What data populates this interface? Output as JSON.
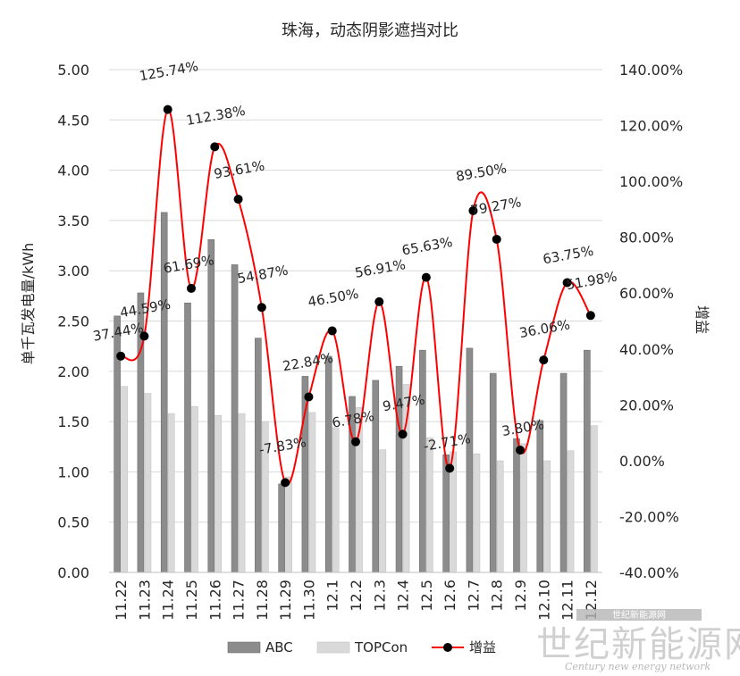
{
  "chart_data": {
    "type": "bar",
    "title": "珠海，动态阴影遮挡对比",
    "ylabel": "单千瓦发电量/kWh",
    "y2label": "增益",
    "ylim": [
      0,
      5
    ],
    "y2lim": [
      -40,
      140
    ],
    "y_ticks": [
      "0.00",
      "0.50",
      "1.00",
      "1.50",
      "2.00",
      "2.50",
      "3.00",
      "3.50",
      "4.00",
      "4.50",
      "5.00"
    ],
    "y2_ticks": [
      "-40.00%",
      "-20.00%",
      "0.00%",
      "20.00%",
      "40.00%",
      "60.00%",
      "80.00%",
      "100.00%",
      "120.00%",
      "140.00%"
    ],
    "categories": [
      "11.22",
      "11.23",
      "11.24",
      "11.25",
      "11.26",
      "11.27",
      "11.28",
      "11.29",
      "11.30",
      "12.1",
      "12.2",
      "12.3",
      "12.4",
      "12.5",
      "12.6",
      "12.7",
      "12.8",
      "12.9",
      "12.10",
      "12.11",
      "12.12"
    ],
    "series": [
      {
        "name": "ABC",
        "type": "bar",
        "color": "#8c8c8c",
        "values": [
          2.55,
          2.78,
          3.58,
          2.68,
          3.31,
          3.06,
          2.33,
          0.88,
          1.95,
          2.15,
          1.75,
          1.91,
          2.05,
          2.21,
          1.17,
          2.23,
          1.98,
          1.33,
          1.51,
          1.98,
          2.21
        ]
      },
      {
        "name": "TOPCon",
        "type": "bar",
        "color": "#d9d9d9",
        "values": [
          1.85,
          1.78,
          1.58,
          1.65,
          1.56,
          1.58,
          1.5,
          0.95,
          1.59,
          1.44,
          1.64,
          1.22,
          1.87,
          1.34,
          1.2,
          1.18,
          1.11,
          1.28,
          1.11,
          1.21,
          1.46
        ]
      },
      {
        "name": "增益",
        "type": "line",
        "color": "#ff0000",
        "axis": "right",
        "values": [
          37.44,
          44.59,
          125.74,
          61.69,
          112.38,
          93.61,
          54.87,
          -7.83,
          22.84,
          46.5,
          6.78,
          56.91,
          9.47,
          65.63,
          -2.71,
          89.5,
          79.27,
          3.8,
          36.06,
          63.75,
          51.98
        ],
        "labels": [
          "37.44%",
          "44.59%",
          "125.74%",
          "61.69%",
          "112.38%",
          "93.61%",
          "54.87%",
          "-7.83%",
          "22.84%",
          "46.50%",
          "6.78%",
          "56.91%",
          "9.47%",
          "65.63%",
          "-2.71%",
          "89.50%",
          "79.27%",
          "3.80%",
          "36.06%",
          "63.75%",
          "51.98%"
        ]
      }
    ],
    "grid": true,
    "legend": "bottom"
  },
  "watermark": {
    "text": "世纪新能源网",
    "subtext": "Century new energy network",
    "tag": "世纪新能源网"
  }
}
